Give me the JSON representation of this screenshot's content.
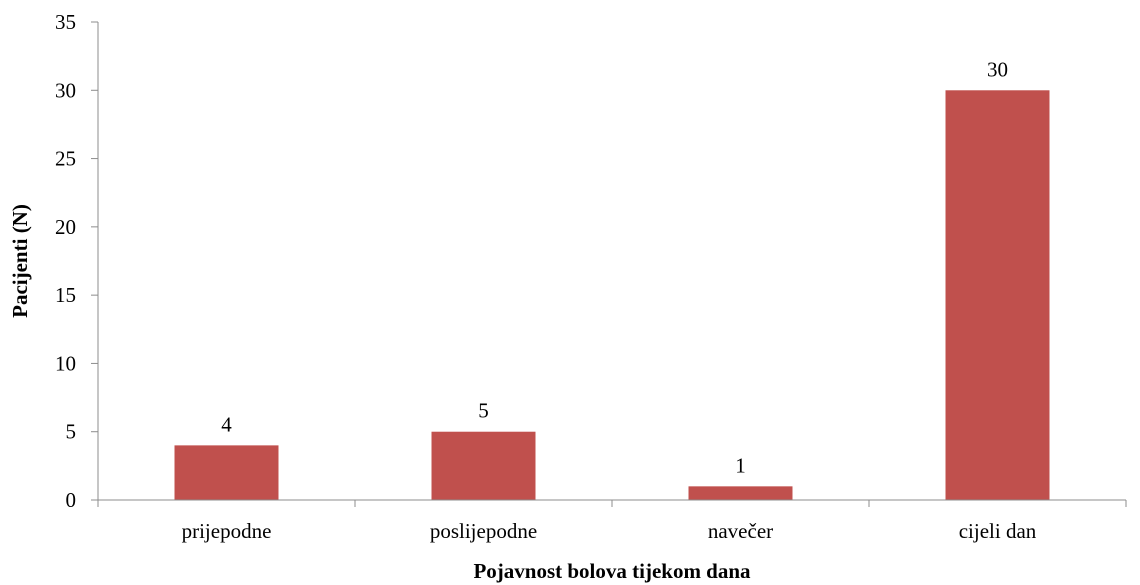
{
  "chart_data": {
    "type": "bar",
    "categories": [
      "prijepodne",
      "poslijepodne",
      "navečer",
      "cijeli dan"
    ],
    "series": [
      {
        "values": [
          4,
          5,
          1,
          30
        ],
        "color": "#c0504d"
      }
    ],
    "data_labels": [
      "4",
      "5",
      "1",
      "30"
    ],
    "title": "",
    "xlabel": "Pojavnost bolova tijekom dana",
    "ylabel": "Pacijenti (N)",
    "ylim": [
      0,
      35
    ],
    "yticks": [
      0,
      5,
      10,
      15,
      20,
      25,
      30,
      35
    ],
    "grid": false,
    "legend": "none"
  }
}
